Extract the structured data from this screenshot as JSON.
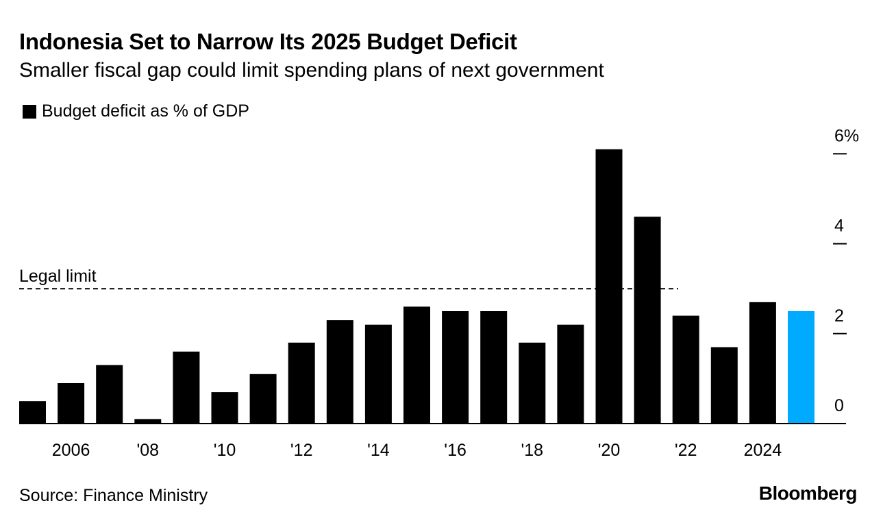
{
  "header": {
    "title": "Indonesia Set to Narrow Its 2025 Budget Deficit",
    "subtitle": "Smaller fiscal gap could limit spending plans of next government"
  },
  "legend": {
    "label": "Budget deficit as % of GDP",
    "color": "#000000"
  },
  "footer": {
    "source": "Source: Finance Ministry",
    "brand": "Bloomberg"
  },
  "colors": {
    "bar": "#000000",
    "highlight": "#00aaff",
    "axis": "#000000"
  },
  "chart_data": {
    "type": "bar",
    "title": "Indonesia Set to Narrow Its 2025 Budget Deficit",
    "ylabel": "Budget deficit as % of GDP",
    "ylim": [
      0,
      6
    ],
    "categories": [
      "2005",
      "2006",
      "2007",
      "2008",
      "2009",
      "2010",
      "2011",
      "2012",
      "2013",
      "2014",
      "2015",
      "2016",
      "2017",
      "2018",
      "2019",
      "2020",
      "2021",
      "2022",
      "2023",
      "2024",
      "2025"
    ],
    "values": [
      0.5,
      0.9,
      1.3,
      0.1,
      1.6,
      0.7,
      1.1,
      1.8,
      2.3,
      2.2,
      2.6,
      2.5,
      2.5,
      1.8,
      2.2,
      6.1,
      4.6,
      2.4,
      1.7,
      2.7,
      2.5
    ],
    "highlight_index": 20,
    "y_ticks": [
      {
        "value": 0,
        "label": "0"
      },
      {
        "value": 2,
        "label": "2"
      },
      {
        "value": 4,
        "label": "4"
      },
      {
        "value": 6,
        "label": "6%"
      }
    ],
    "x_tick_labels": [
      {
        "index": 1,
        "label": "2006"
      },
      {
        "index": 3,
        "label": "'08"
      },
      {
        "index": 5,
        "label": "'10"
      },
      {
        "index": 7,
        "label": "'12"
      },
      {
        "index": 9,
        "label": "'14"
      },
      {
        "index": 11,
        "label": "'16"
      },
      {
        "index": 13,
        "label": "'18"
      },
      {
        "index": 15,
        "label": "'20"
      },
      {
        "index": 17,
        "label": "'22"
      },
      {
        "index": 19,
        "label": "2024"
      }
    ],
    "reference_line": {
      "value": 3,
      "label": "Legal limit"
    }
  }
}
